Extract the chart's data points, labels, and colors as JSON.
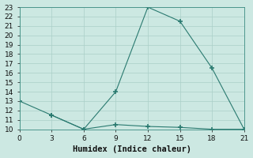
{
  "xlabel": "Humidex (Indice chaleur)",
  "line1_x": [
    0,
    3,
    6,
    9,
    12,
    15,
    18,
    21
  ],
  "line1_y": [
    13,
    11.5,
    10,
    14,
    23,
    21.5,
    16.5,
    10
  ],
  "line2_x": [
    3,
    6,
    9,
    12,
    15,
    18,
    21
  ],
  "line2_y": [
    11.5,
    10,
    10.5,
    10.3,
    10.2,
    10.0,
    10.0
  ],
  "line_color": "#2a7a70",
  "marker": "+",
  "marker_size": 5,
  "marker_linewidth": 1.2,
  "line_width": 0.8,
  "bg_color": "#cce8e2",
  "grid_color": "#aacfc8",
  "xlim": [
    0,
    21
  ],
  "ylim": [
    10,
    23
  ],
  "xticks": [
    0,
    3,
    6,
    9,
    12,
    15,
    18,
    21
  ],
  "yticks": [
    10,
    11,
    12,
    13,
    14,
    15,
    16,
    17,
    18,
    19,
    20,
    21,
    22,
    23
  ],
  "tick_fontsize": 6.5,
  "label_fontsize": 7.5
}
